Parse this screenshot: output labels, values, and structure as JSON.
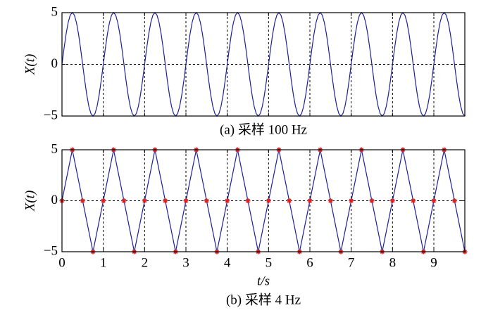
{
  "chart_data": [
    {
      "type": "line",
      "caption": "(a) 采样 100 Hz",
      "ylabel": "X(t)",
      "color": "#1f1f9c",
      "grid": true,
      "xticklabels": false,
      "xlim": [
        0,
        9.75
      ],
      "ylim": [
        -5,
        5
      ],
      "xticks": [
        0,
        1,
        2,
        3,
        4,
        5,
        6,
        7,
        8,
        9
      ],
      "yticks": [
        {
          "value": -5,
          "label": "−5"
        },
        0,
        5
      ],
      "x": [
        0,
        0.05,
        0.1,
        0.15,
        0.2,
        0.25,
        0.3,
        0.35,
        0.4,
        0.45,
        0.5,
        0.55,
        0.6,
        0.65,
        0.7,
        0.75,
        0.8,
        0.85,
        0.9,
        0.95,
        1,
        1.05,
        1.1,
        1.15,
        1.2,
        1.25,
        1.3,
        1.35,
        1.4,
        1.45,
        1.5,
        1.55,
        1.6,
        1.65,
        1.7,
        1.75,
        1.8,
        1.85,
        1.9,
        1.95,
        2,
        2.05,
        2.1,
        2.15,
        2.2,
        2.25,
        2.3,
        2.35,
        2.4,
        2.45,
        2.5,
        2.55,
        2.6,
        2.65,
        2.7,
        2.75,
        2.8,
        2.85,
        2.9,
        2.95,
        3,
        3.05,
        3.1,
        3.15,
        3.2,
        3.25,
        3.3,
        3.35,
        3.4,
        3.45,
        3.5,
        3.55,
        3.6,
        3.65,
        3.7,
        3.75,
        3.8,
        3.85,
        3.9,
        3.95,
        4,
        4.05,
        4.1,
        4.15,
        4.2,
        4.25,
        4.3,
        4.35,
        4.4,
        4.45,
        4.5,
        4.55,
        4.6,
        4.65,
        4.7,
        4.75,
        4.8,
        4.85,
        4.9,
        4.95,
        5,
        5.05,
        5.1,
        5.15,
        5.2,
        5.25,
        5.3,
        5.35,
        5.4,
        5.45,
        5.5,
        5.55,
        5.6,
        5.65,
        5.7,
        5.75,
        5.8,
        5.85,
        5.9,
        5.95,
        6,
        6.05,
        6.1,
        6.15,
        6.2,
        6.25,
        6.3,
        6.35,
        6.4,
        6.45,
        6.5,
        6.55,
        6.6,
        6.65,
        6.7,
        6.75,
        6.8,
        6.85,
        6.9,
        6.95,
        7,
        7.05,
        7.1,
        7.15,
        7.2,
        7.25,
        7.3,
        7.35,
        7.4,
        7.45,
        7.5,
        7.55,
        7.6,
        7.65,
        7.7,
        7.75,
        7.8,
        7.85,
        7.9,
        7.95,
        8,
        8.05,
        8.1,
        8.15,
        8.2,
        8.25,
        8.3,
        8.35,
        8.4,
        8.45,
        8.5,
        8.55,
        8.6,
        8.65,
        8.7,
        8.75,
        8.8,
        8.85,
        8.9,
        8.95,
        9,
        9.05,
        9.1,
        9.15,
        9.2,
        9.25,
        9.3,
        9.35,
        9.4,
        9.45,
        9.5,
        9.55,
        9.6,
        9.65,
        9.7,
        9.75
      ],
      "values": [
        0,
        1.55,
        2.94,
        4.05,
        4.76,
        5,
        4.76,
        4.05,
        2.94,
        1.55,
        0,
        -1.55,
        -2.94,
        -4.05,
        -4.76,
        -5,
        -4.76,
        -4.05,
        -2.94,
        -1.55,
        0,
        1.55,
        2.94,
        4.05,
        4.76,
        5,
        4.76,
        4.05,
        2.94,
        1.55,
        0,
        -1.55,
        -2.94,
        -4.05,
        -4.76,
        -5,
        -4.76,
        -4.05,
        -2.94,
        -1.55,
        0,
        1.55,
        2.94,
        4.05,
        4.76,
        5,
        4.76,
        4.05,
        2.94,
        1.55,
        0,
        -1.55,
        -2.94,
        -4.05,
        -4.76,
        -5,
        -4.76,
        -4.05,
        -2.94,
        -1.55,
        0,
        1.55,
        2.94,
        4.05,
        4.76,
        5,
        4.76,
        4.05,
        2.94,
        1.55,
        0,
        -1.55,
        -2.94,
        -4.05,
        -4.76,
        -5,
        -4.76,
        -4.05,
        -2.94,
        -1.55,
        0,
        1.55,
        2.94,
        4.05,
        4.76,
        5,
        4.76,
        4.05,
        2.94,
        1.55,
        0,
        -1.55,
        -2.94,
        -4.05,
        -4.76,
        -5,
        -4.76,
        -4.05,
        -2.94,
        -1.55,
        0,
        1.55,
        2.94,
        4.05,
        4.76,
        5,
        4.76,
        4.05,
        2.94,
        1.55,
        0,
        -1.55,
        -2.94,
        -4.05,
        -4.76,
        -5,
        -4.76,
        -4.05,
        -2.94,
        -1.55,
        0,
        1.55,
        2.94,
        4.05,
        4.76,
        5,
        4.76,
        4.05,
        2.94,
        1.55,
        0,
        -1.55,
        -2.94,
        -4.05,
        -4.76,
        -5,
        -4.76,
        -4.05,
        -2.94,
        -1.55,
        0,
        1.55,
        2.94,
        4.05,
        4.76,
        5,
        4.76,
        4.05,
        2.94,
        1.55,
        0,
        -1.55,
        -2.94,
        -4.05,
        -4.76,
        -5,
        -4.76,
        -4.05,
        -2.94,
        -1.55,
        0,
        1.55,
        2.94,
        4.05,
        4.76,
        5,
        4.76,
        4.05,
        2.94,
        1.55,
        0,
        -1.55,
        -2.94,
        -4.05,
        -4.76,
        -5,
        -4.76,
        -4.05,
        -2.94,
        -1.55,
        0,
        1.55,
        2.94,
        4.05,
        4.76,
        5,
        4.76,
        4.05,
        2.94,
        1.55,
        0,
        -1.55,
        -2.94,
        -4.05,
        -4.76,
        -5
      ]
    },
    {
      "type": "line",
      "caption": "(b) 采样 4 Hz",
      "ylabel": "X(t)",
      "xlabel": "t/s",
      "color": "#1f1f9c",
      "marker": "*",
      "marker_color": "#e02020",
      "grid": true,
      "xticklabels": true,
      "xlim": [
        0,
        9.75
      ],
      "ylim": [
        -5,
        5
      ],
      "xticks": [
        0,
        1,
        2,
        3,
        4,
        5,
        6,
        7,
        8,
        9
      ],
      "yticks": [
        {
          "value": -5,
          "label": "−5"
        },
        0,
        5
      ],
      "x": [
        0,
        0.25,
        0.5,
        0.75,
        1,
        1.25,
        1.5,
        1.75,
        2,
        2.25,
        2.5,
        2.75,
        3,
        3.25,
        3.5,
        3.75,
        4,
        4.25,
        4.5,
        4.75,
        5,
        5.25,
        5.5,
        5.75,
        6,
        6.25,
        6.5,
        6.75,
        7,
        7.25,
        7.5,
        7.75,
        8,
        8.25,
        8.5,
        8.75,
        9,
        9.25,
        9.5,
        9.75
      ],
      "values": [
        0,
        5,
        0,
        -5,
        0,
        5,
        0,
        -5,
        0,
        5,
        0,
        -5,
        0,
        5,
        0,
        -5,
        0,
        5,
        0,
        -5,
        0,
        5,
        0,
        -5,
        0,
        5,
        0,
        -5,
        0,
        5,
        0,
        -5,
        0,
        5,
        0,
        -5,
        0,
        5,
        0,
        -5
      ]
    }
  ]
}
